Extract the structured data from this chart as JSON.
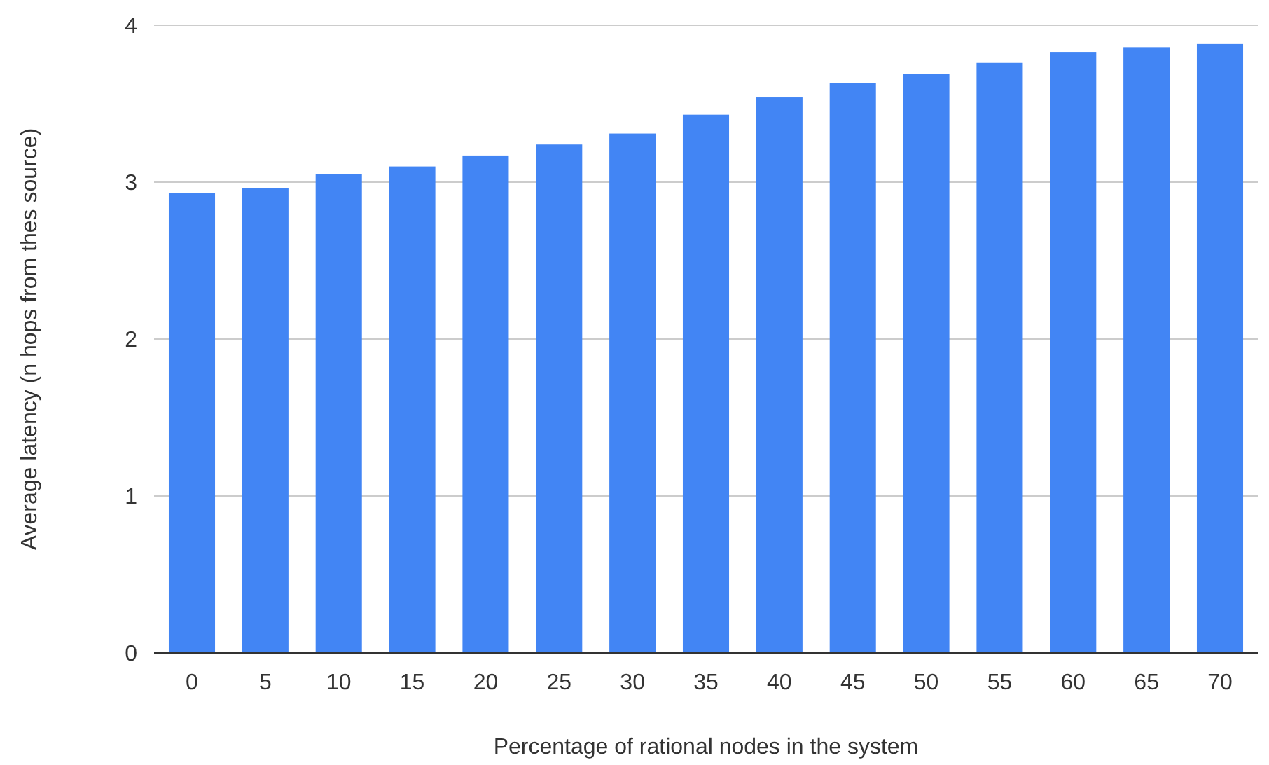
{
  "chart_data": {
    "type": "bar",
    "xlabel": "Percentage of rational nodes in the system",
    "ylabel": "Average latency (n hops from thes source)",
    "categories": [
      "0",
      "5",
      "10",
      "15",
      "20",
      "25",
      "30",
      "35",
      "40",
      "45",
      "50",
      "55",
      "60",
      "65",
      "70"
    ],
    "values": [
      2.93,
      2.96,
      3.05,
      3.1,
      3.17,
      3.24,
      3.31,
      3.43,
      3.54,
      3.63,
      3.69,
      3.76,
      3.83,
      3.86,
      3.88
    ],
    "color": "#4285f4",
    "ylim": [
      0,
      4
    ],
    "yticks": [
      0,
      1,
      2,
      3,
      4
    ],
    "grid": "y"
  }
}
